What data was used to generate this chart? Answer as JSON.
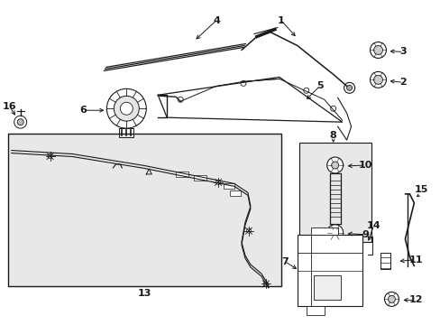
{
  "bg_color": "#ffffff",
  "fig_bg": "#ffffff",
  "box_bg": "#e8e8e8",
  "gray": "#1a1a1a",
  "label_fs": 8,
  "label_fs_small": 7
}
